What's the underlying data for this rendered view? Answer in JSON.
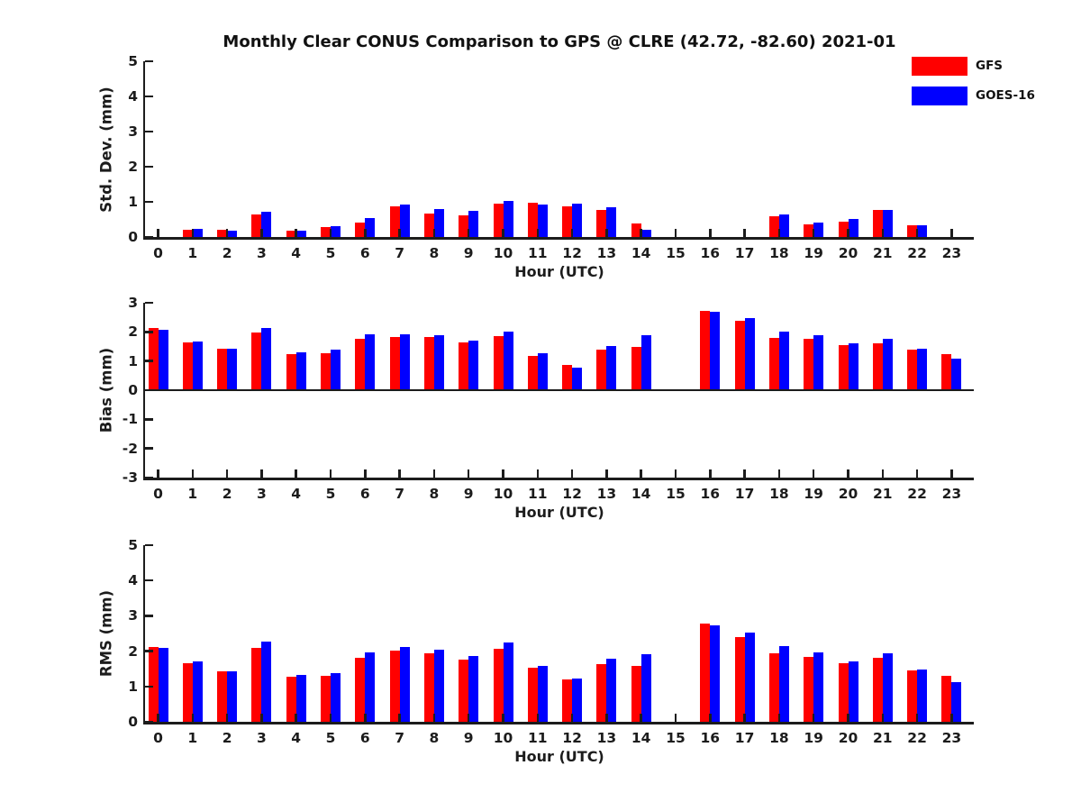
{
  "title": "Monthly Clear CONUS Comparison to GPS @ CLRE (42.72, -82.60) 2021-01",
  "legend": {
    "items": [
      {
        "label": "GFS",
        "color": "#ff0000"
      },
      {
        "label": "GOES-16",
        "color": "#0000ff"
      }
    ]
  },
  "axis_color": "#1c1c1c",
  "xlabel": "Hour (UTC)",
  "chart_data": [
    {
      "type": "bar",
      "panel": "stddev",
      "ylabel": "Std. Dev. (mm)",
      "xlabel": "Hour (UTC)",
      "ylim": [
        0,
        5
      ],
      "yticks": [
        0,
        1,
        2,
        3,
        4,
        5
      ],
      "grid": false,
      "legend_position": "upper-right-outside",
      "categories": [
        0,
        1,
        2,
        3,
        4,
        5,
        6,
        7,
        8,
        9,
        10,
        11,
        12,
        13,
        14,
        15,
        16,
        17,
        18,
        19,
        20,
        21,
        22,
        23
      ],
      "series": [
        {
          "name": "GFS",
          "color": "#ff0000",
          "values": [
            null,
            0.2,
            0.21,
            0.63,
            0.19,
            0.27,
            0.42,
            0.88,
            0.67,
            0.62,
            0.96,
            0.97,
            0.86,
            0.78,
            0.38,
            null,
            null,
            null,
            0.6,
            0.36,
            0.43,
            0.77,
            0.34,
            null
          ]
        },
        {
          "name": "GOES-16",
          "color": "#0000ff",
          "values": [
            null,
            0.22,
            0.19,
            0.72,
            0.19,
            0.3,
            0.54,
            0.93,
            0.79,
            0.74,
            1.03,
            0.93,
            0.96,
            0.84,
            0.21,
            null,
            null,
            null,
            0.64,
            0.42,
            0.51,
            0.77,
            0.34,
            null
          ]
        }
      ]
    },
    {
      "type": "bar",
      "panel": "bias",
      "ylabel": "Bias (mm)",
      "xlabel": "Hour (UTC)",
      "ylim": [
        -3,
        3
      ],
      "yticks": [
        -3,
        -2,
        -1,
        0,
        1,
        2,
        3
      ],
      "grid": false,
      "categories": [
        0,
        1,
        2,
        3,
        4,
        5,
        6,
        7,
        8,
        9,
        10,
        11,
        12,
        13,
        14,
        15,
        16,
        17,
        18,
        19,
        20,
        21,
        22,
        23
      ],
      "series": [
        {
          "name": "GFS",
          "color": "#ff0000",
          "values": [
            2.13,
            1.65,
            1.43,
            1.98,
            1.25,
            1.28,
            1.75,
            1.82,
            1.82,
            1.63,
            1.85,
            1.18,
            0.87,
            1.38,
            1.48,
            null,
            2.73,
            2.37,
            1.8,
            1.75,
            1.56,
            1.6,
            1.4,
            1.24
          ]
        },
        {
          "name": "GOES-16",
          "color": "#0000ff",
          "values": [
            2.08,
            1.68,
            1.43,
            2.13,
            1.3,
            1.38,
            1.92,
            1.92,
            1.88,
            1.7,
            2.02,
            1.26,
            0.78,
            1.52,
            1.88,
            null,
            2.7,
            2.48,
            2.0,
            1.9,
            1.61,
            1.75,
            1.43,
            1.08
          ]
        }
      ]
    },
    {
      "type": "bar",
      "panel": "rms",
      "ylabel": "RMS (mm)",
      "xlabel": "Hour (UTC)",
      "ylim": [
        0,
        5
      ],
      "yticks": [
        0,
        1,
        2,
        3,
        4,
        5
      ],
      "grid": false,
      "categories": [
        0,
        1,
        2,
        3,
        4,
        5,
        6,
        7,
        8,
        9,
        10,
        11,
        12,
        13,
        14,
        15,
        16,
        17,
        18,
        19,
        20,
        21,
        22,
        23
      ],
      "series": [
        {
          "name": "GFS",
          "color": "#ff0000",
          "values": [
            2.13,
            1.66,
            1.44,
            2.08,
            1.27,
            1.31,
            1.81,
            2.01,
            1.93,
            1.77,
            2.06,
            1.52,
            1.21,
            1.63,
            1.58,
            null,
            2.77,
            2.41,
            1.94,
            1.84,
            1.67,
            1.82,
            1.45,
            1.3
          ]
        },
        {
          "name": "GOES-16",
          "color": "#0000ff",
          "values": [
            2.08,
            1.7,
            1.44,
            2.26,
            1.32,
            1.39,
            1.97,
            2.12,
            2.04,
            1.85,
            2.25,
            1.58,
            1.23,
            1.79,
            1.92,
            null,
            2.74,
            2.53,
            2.14,
            1.96,
            1.71,
            1.95,
            1.48,
            1.12
          ]
        }
      ]
    }
  ]
}
